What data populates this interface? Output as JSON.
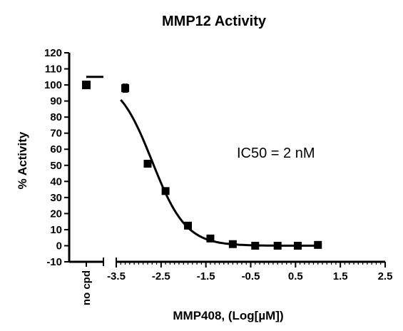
{
  "chart_data": {
    "type": "scatter",
    "title": "MMP12 Activity",
    "xlabel": "MMP408, (Log[µM])",
    "ylabel": "% Activity",
    "annotation": "IC50 = 2 nM",
    "control_label": "no cpd",
    "control_value": 100,
    "control_error": 2,
    "control_fit_top": 105,
    "xlim": [
      -3.5,
      2.5
    ],
    "ylim": [
      -10,
      120
    ],
    "x_ticks": [
      "-3.5",
      "-2.5",
      "-1.5",
      "-0.5",
      "0.5",
      "1.5",
      "2.5"
    ],
    "y_ticks": [
      "-10",
      "0",
      "10",
      "20",
      "30",
      "40",
      "50",
      "60",
      "70",
      "80",
      "90",
      "100",
      "110",
      "120"
    ],
    "points": [
      {
        "x": -3.3,
        "y": 98,
        "err": 2.5
      },
      {
        "x": -2.8,
        "y": 51,
        "err": 2
      },
      {
        "x": -2.4,
        "y": 34,
        "err": 1.5
      },
      {
        "x": -1.9,
        "y": 12.5,
        "err": 1
      },
      {
        "x": -1.4,
        "y": 4.5,
        "err": 1
      },
      {
        "x": -0.9,
        "y": 1,
        "err": 0.5
      },
      {
        "x": -0.4,
        "y": 0,
        "err": 0.5
      },
      {
        "x": 0.1,
        "y": 0,
        "err": 0.5
      },
      {
        "x": 0.55,
        "y": 0,
        "err": 0.5
      },
      {
        "x": 1.0,
        "y": 0.5,
        "err": 0.5
      }
    ],
    "fit": {
      "model": "sigmoidal",
      "top": 105,
      "bottom": 0,
      "log_ic50": -2.7,
      "hill_slope": 1,
      "x_range": [
        -3.4,
        1.0
      ]
    },
    "grid": false,
    "legend": "none"
  }
}
